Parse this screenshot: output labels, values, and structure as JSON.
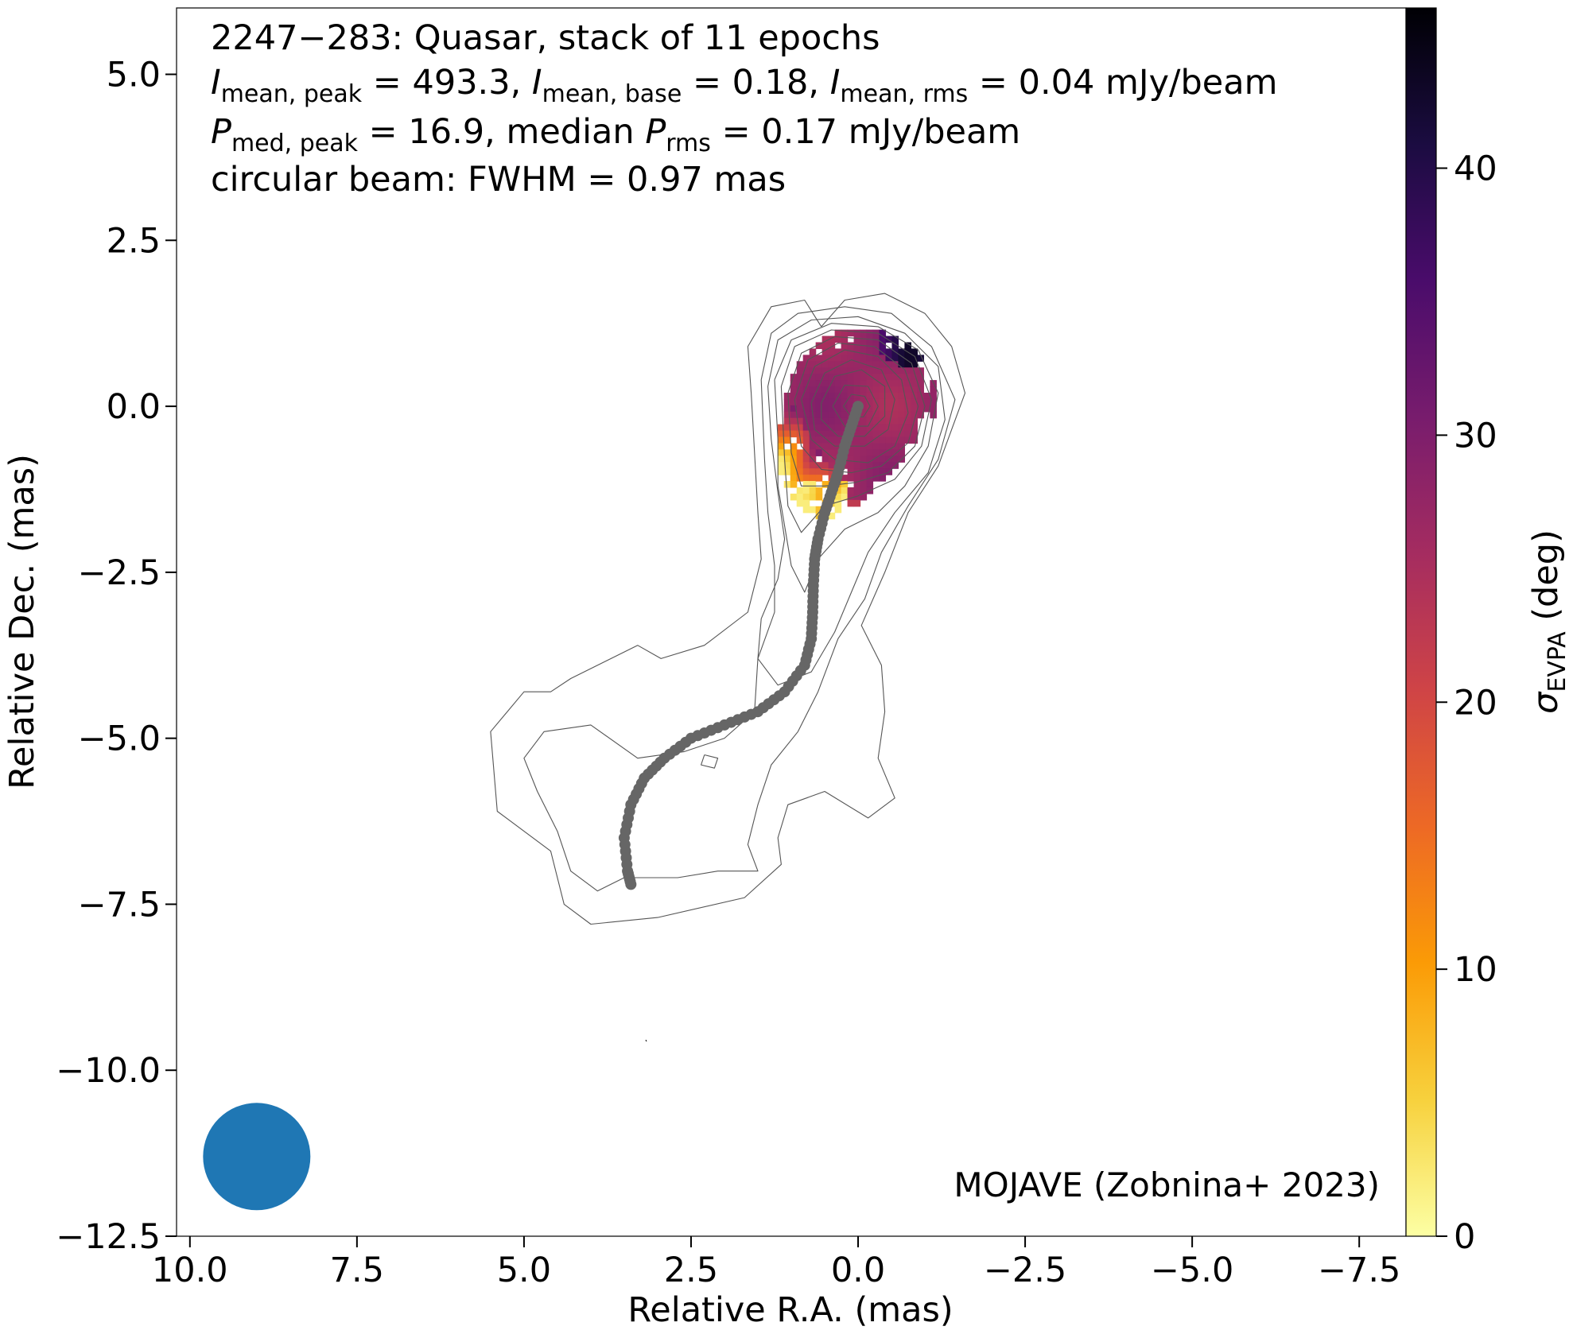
{
  "chart_data": {
    "type": "heatmap",
    "annotation_lines": [
      "2247−283: Quasar, stack of 11 epochs",
      "Imean, peak = 493.3, Imean, base = 0.18, Imean, rms = 0.04 mJy/beam",
      "Pmed, peak = 16.9, median Prms = 0.17 mJy/beam",
      "circular beam: FWHM = 0.97 mas"
    ],
    "stats": {
      "object": "2247−283",
      "class": "Quasar",
      "epochs": 11,
      "I_mean_peak": 493.3,
      "I_mean_base": 0.18,
      "I_mean_rms": 0.04,
      "P_med_peak": 16.9,
      "P_rms_median": 0.17,
      "flux_unit": "mJy/beam",
      "beam_fwhm_mas": 0.97
    },
    "credit": "MOJAVE (Zobnina+ 2023)",
    "xlabel": "Relative R.A. (mas)",
    "ylabel": "Relative Dec. (mas)",
    "xlim": [
      10.2,
      -8.2
    ],
    "ylim": [
      -12.5,
      6.0
    ],
    "xticks": [
      10.0,
      7.5,
      5.0,
      2.5,
      0.0,
      -2.5,
      -5.0,
      -7.5
    ],
    "xtick_labels": [
      "10.0",
      "7.5",
      "5.0",
      "2.5",
      "0.0",
      "−2.5",
      "−5.0",
      "−7.5"
    ],
    "yticks": [
      5.0,
      2.5,
      0.0,
      -2.5,
      -5.0,
      -7.5,
      -10.0,
      -12.5
    ],
    "ytick_labels": [
      "5.0",
      "2.5",
      "0.0",
      "−2.5",
      "−5.0",
      "−7.5",
      "−10.0",
      "−12.5"
    ],
    "colorbar": {
      "label": "σEVPA (deg)",
      "range": [
        0,
        46
      ],
      "ticks": [
        0,
        10,
        20,
        30,
        40
      ],
      "tick_labels": [
        "0",
        "10",
        "20",
        "30",
        "40"
      ],
      "colormap": "inferno_r",
      "gradient": [
        "#fcffa4",
        "#f7d13d",
        "#fb9b06",
        "#ed6925",
        "#cf4446",
        "#a52c60",
        "#781c6d",
        "#4a0c6b",
        "#1b0c41",
        "#000004"
      ]
    },
    "contour_color": "#555555",
    "ridge_color": "#666666",
    "beam": {
      "x": 9.0,
      "y": -11.3,
      "fwhm": 0.97,
      "color": "#1f77b4"
    },
    "jet_ridge": [
      [
        0.0,
        0.0
      ],
      [
        0.1,
        -0.3
      ],
      [
        0.2,
        -0.6
      ],
      [
        0.3,
        -1.0
      ],
      [
        0.4,
        -1.3
      ],
      [
        0.5,
        -1.6
      ],
      [
        0.6,
        -2.0
      ],
      [
        0.65,
        -2.3
      ],
      [
        0.67,
        -2.7
      ],
      [
        0.68,
        -3.1
      ],
      [
        0.7,
        -3.5
      ],
      [
        0.8,
        -3.9
      ],
      [
        1.1,
        -4.3
      ],
      [
        1.5,
        -4.6
      ],
      [
        2.0,
        -4.8
      ],
      [
        2.5,
        -5.0
      ],
      [
        2.9,
        -5.3
      ],
      [
        3.2,
        -5.6
      ],
      [
        3.4,
        -6.0
      ],
      [
        3.5,
        -6.5
      ],
      [
        3.45,
        -7.0
      ],
      [
        3.4,
        -7.2
      ]
    ],
    "contours": [
      [
        [
          0.55,
          1.2
        ],
        [
          0.8,
          1.6
        ],
        [
          1.3,
          1.5
        ],
        [
          1.65,
          0.9
        ],
        [
          1.6,
          0.2
        ],
        [
          1.55,
          -0.7
        ],
        [
          1.5,
          -1.6
        ],
        [
          1.45,
          -2.3
        ],
        [
          1.65,
          -3.1
        ],
        [
          2.3,
          -3.6
        ],
        [
          2.95,
          -3.8
        ],
        [
          3.3,
          -3.6
        ],
        [
          4.3,
          -4.1
        ],
        [
          4.6,
          -4.3
        ],
        [
          5.0,
          -4.3
        ],
        [
          5.5,
          -4.9
        ],
        [
          5.4,
          -6.1
        ],
        [
          4.6,
          -6.7
        ],
        [
          4.4,
          -7.5
        ],
        [
          4.0,
          -7.8
        ],
        [
          3.0,
          -7.7
        ],
        [
          1.7,
          -7.4
        ],
        [
          1.15,
          -6.9
        ],
        [
          1.2,
          -6.5
        ],
        [
          1.05,
          -6.0
        ],
        [
          0.5,
          -5.8
        ],
        [
          -0.15,
          -6.2
        ],
        [
          -0.55,
          -5.9
        ],
        [
          -0.3,
          -5.3
        ],
        [
          -0.4,
          -4.6
        ],
        [
          -0.35,
          -3.9
        ],
        [
          -0.05,
          -3.3
        ],
        [
          -0.4,
          -2.5
        ],
        [
          -0.75,
          -1.6
        ],
        [
          -1.2,
          -0.9
        ],
        [
          -1.6,
          0.2
        ],
        [
          -1.4,
          0.9
        ],
        [
          -1.0,
          1.4
        ],
        [
          -0.4,
          1.7
        ],
        [
          0.2,
          1.6
        ],
        [
          0.55,
          1.2
        ]
      ],
      [
        [
          1.45,
          0.4
        ],
        [
          1.3,
          1.1
        ],
        [
          0.9,
          1.4
        ],
        [
          0.2,
          1.5
        ],
        [
          -0.5,
          1.4
        ],
        [
          -1.1,
          0.9
        ],
        [
          -1.45,
          0.1
        ],
        [
          -1.2,
          -0.8
        ],
        [
          -0.75,
          -1.5
        ],
        [
          -0.35,
          -2.2
        ],
        [
          -0.1,
          -2.9
        ],
        [
          0.3,
          -3.5
        ],
        [
          0.6,
          -4.3
        ],
        [
          0.9,
          -4.9
        ],
        [
          1.3,
          -5.4
        ],
        [
          1.5,
          -6.0
        ],
        [
          1.65,
          -6.6
        ],
        [
          1.5,
          -7.0
        ],
        [
          2.1,
          -7.0
        ],
        [
          2.7,
          -7.1
        ],
        [
          3.5,
          -7.1
        ],
        [
          3.9,
          -7.3
        ],
        [
          4.3,
          -7.0
        ],
        [
          4.5,
          -6.4
        ],
        [
          4.8,
          -5.8
        ],
        [
          5.0,
          -5.3
        ],
        [
          4.7,
          -4.9
        ],
        [
          4.0,
          -4.8
        ],
        [
          3.3,
          -5.3
        ],
        [
          2.6,
          -5.2
        ],
        [
          2.0,
          -5.0
        ],
        [
          1.55,
          -4.6
        ],
        [
          1.5,
          -3.8
        ],
        [
          1.25,
          -3.1
        ],
        [
          1.25,
          -2.4
        ],
        [
          1.35,
          -1.6
        ],
        [
          1.4,
          -0.8
        ],
        [
          1.45,
          0.4
        ]
      ],
      [
        [
          1.35,
          0.3
        ],
        [
          1.2,
          1.0
        ],
        [
          0.7,
          1.3
        ],
        [
          0.0,
          1.35
        ],
        [
          -0.7,
          1.1
        ],
        [
          -1.2,
          0.6
        ],
        [
          -1.3,
          -0.2
        ],
        [
          -1.05,
          -1.0
        ],
        [
          -0.55,
          -1.6
        ],
        [
          -0.15,
          -2.2
        ],
        [
          0.1,
          -2.8
        ],
        [
          0.35,
          -3.4
        ],
        [
          0.7,
          -4.0
        ],
        [
          1.2,
          -4.2
        ],
        [
          1.5,
          -3.8
        ],
        [
          1.45,
          -3.2
        ],
        [
          1.2,
          -2.6
        ],
        [
          1.1,
          -2.0
        ],
        [
          1.2,
          -1.3
        ],
        [
          1.3,
          -0.5
        ],
        [
          1.35,
          0.3
        ]
      ],
      [
        [
          1.25,
          0.4
        ],
        [
          1.0,
          1.0
        ],
        [
          0.4,
          1.25
        ],
        [
          -0.3,
          1.2
        ],
        [
          -0.9,
          0.85
        ],
        [
          -1.2,
          0.2
        ],
        [
          -1.05,
          -0.6
        ],
        [
          -0.7,
          -1.2
        ],
        [
          -0.3,
          -1.6
        ],
        [
          0.2,
          -1.85
        ],
        [
          0.6,
          -2.3
        ],
        [
          0.8,
          -2.8
        ],
        [
          1.0,
          -2.4
        ],
        [
          1.1,
          -1.8
        ],
        [
          1.2,
          -1.2
        ],
        [
          1.2,
          -0.5
        ],
        [
          1.25,
          0.4
        ]
      ],
      [
        [
          1.15,
          0.3
        ],
        [
          0.95,
          0.9
        ],
        [
          0.4,
          1.15
        ],
        [
          -0.3,
          1.1
        ],
        [
          -0.85,
          0.75
        ],
        [
          -1.1,
          0.1
        ],
        [
          -0.95,
          -0.6
        ],
        [
          -0.55,
          -1.1
        ],
        [
          0.0,
          -1.35
        ],
        [
          0.5,
          -1.5
        ],
        [
          0.85,
          -1.9
        ],
        [
          1.05,
          -1.5
        ],
        [
          1.1,
          -0.8
        ],
        [
          1.15,
          0.3
        ]
      ],
      [
        [
          1.05,
          0.2
        ],
        [
          0.85,
          0.8
        ],
        [
          0.35,
          1.05
        ],
        [
          -0.3,
          1.0
        ],
        [
          -0.8,
          0.65
        ],
        [
          -1.0,
          0.0
        ],
        [
          -0.85,
          -0.6
        ],
        [
          -0.45,
          -1.0
        ],
        [
          0.05,
          -1.15
        ],
        [
          0.5,
          -1.2
        ],
        [
          0.85,
          -1.2
        ],
        [
          1.0,
          -0.7
        ],
        [
          1.05,
          0.2
        ]
      ],
      [
        [
          0.95,
          0.1
        ],
        [
          0.75,
          0.7
        ],
        [
          0.3,
          0.95
        ],
        [
          -0.25,
          0.9
        ],
        [
          -0.7,
          0.55
        ],
        [
          -0.9,
          0.0
        ],
        [
          -0.75,
          -0.55
        ],
        [
          -0.35,
          -0.9
        ],
        [
          0.1,
          -1.0
        ],
        [
          0.55,
          -0.95
        ],
        [
          0.85,
          -0.6
        ],
        [
          0.95,
          0.1
        ]
      ],
      [
        [
          0.85,
          0.1
        ],
        [
          0.65,
          0.6
        ],
        [
          0.2,
          0.85
        ],
        [
          -0.3,
          0.75
        ],
        [
          -0.65,
          0.4
        ],
        [
          -0.75,
          -0.1
        ],
        [
          -0.55,
          -0.6
        ],
        [
          -0.15,
          -0.85
        ],
        [
          0.35,
          -0.8
        ],
        [
          0.7,
          -0.5
        ],
        [
          0.85,
          0.1
        ]
      ],
      [
        [
          0.7,
          0.05
        ],
        [
          0.5,
          0.5
        ],
        [
          0.1,
          0.7
        ],
        [
          -0.35,
          0.55
        ],
        [
          -0.55,
          0.1
        ],
        [
          -0.45,
          -0.35
        ],
        [
          -0.1,
          -0.6
        ],
        [
          0.35,
          -0.6
        ],
        [
          0.65,
          -0.35
        ],
        [
          0.7,
          0.05
        ]
      ],
      [
        [
          0.55,
          0.05
        ],
        [
          0.35,
          0.45
        ],
        [
          -0.05,
          0.55
        ],
        [
          -0.4,
          0.3
        ],
        [
          -0.4,
          -0.15
        ],
        [
          -0.1,
          -0.45
        ],
        [
          0.3,
          -0.45
        ],
        [
          0.55,
          -0.2
        ],
        [
          0.55,
          0.05
        ]
      ],
      [
        [
          0.38,
          0.0
        ],
        [
          0.2,
          0.32
        ],
        [
          -0.15,
          0.3
        ],
        [
          -0.3,
          0.0
        ],
        [
          -0.15,
          -0.3
        ],
        [
          0.2,
          -0.3
        ],
        [
          0.38,
          0.0
        ]
      ],
      [
        [
          0.22,
          0.0
        ],
        [
          0.1,
          0.18
        ],
        [
          -0.1,
          0.15
        ],
        [
          -0.18,
          0.0
        ],
        [
          -0.08,
          -0.16
        ],
        [
          0.1,
          -0.16
        ],
        [
          0.22,
          0.0
        ]
      ],
      [
        [
          2.3,
          -5.25
        ],
        [
          2.1,
          -5.3
        ],
        [
          2.15,
          -5.45
        ],
        [
          2.35,
          -5.4
        ],
        [
          2.3,
          -5.25
        ]
      ]
    ]
  }
}
